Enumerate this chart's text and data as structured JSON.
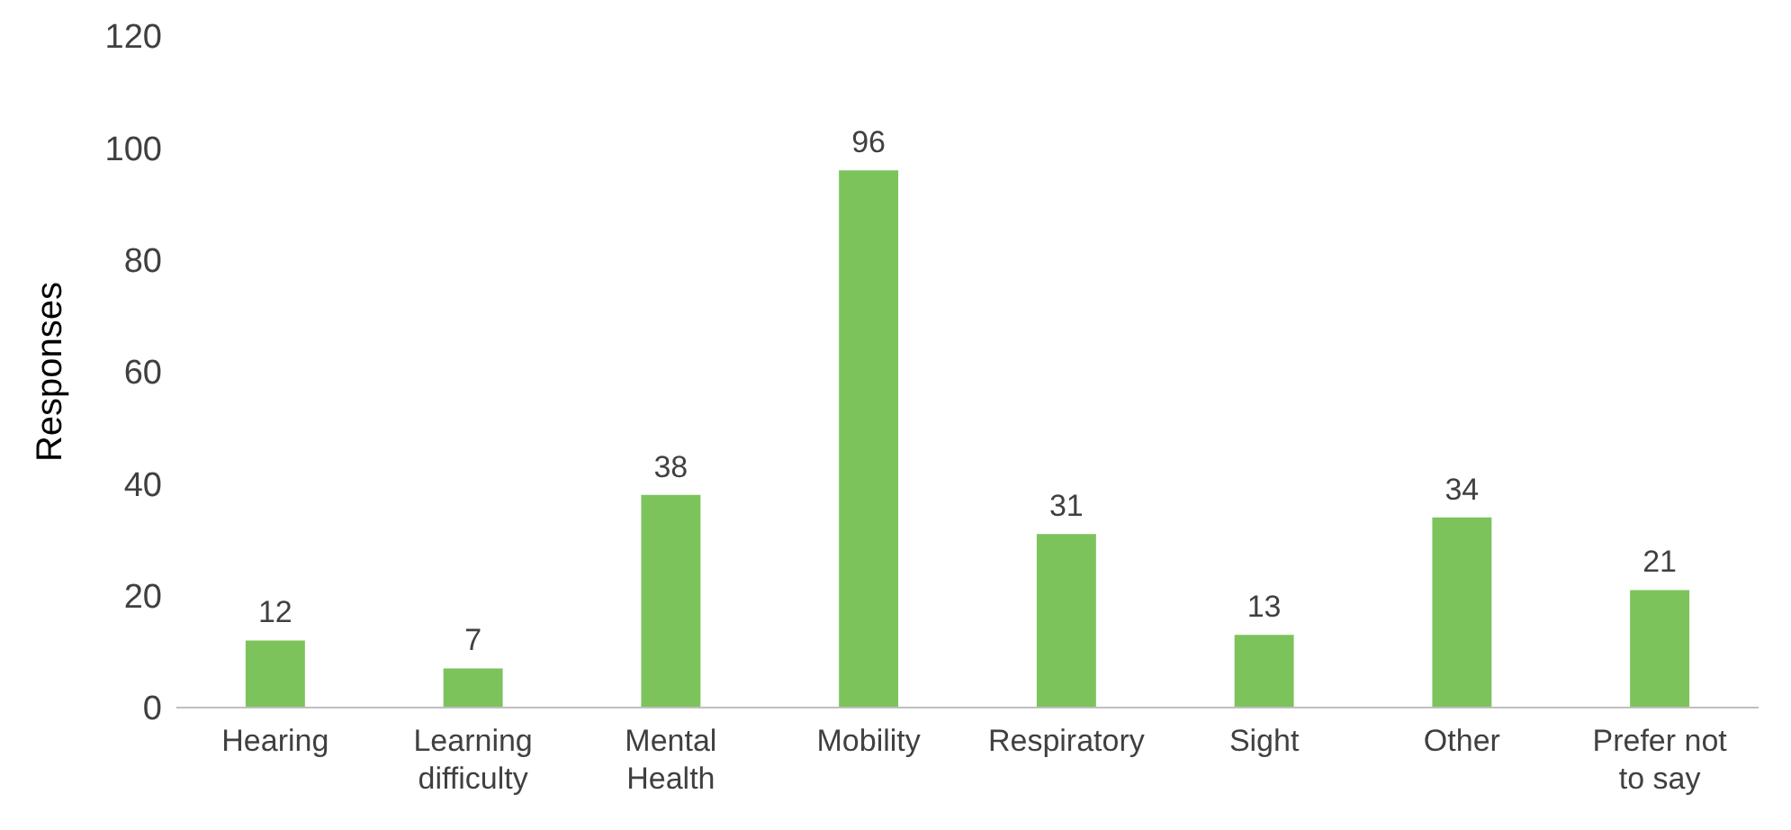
{
  "chart_data": {
    "type": "bar",
    "ylabel": "Responses",
    "categories": [
      "Hearing",
      "Learning difficulty",
      "Mental Health",
      "Mobility",
      "Respiratory",
      "Sight",
      "Other",
      "Prefer not to say"
    ],
    "values": [
      12,
      7,
      38,
      96,
      31,
      13,
      34,
      21
    ],
    "color": "#7dc35b",
    "ylim": [
      0,
      120
    ],
    "yticks": [
      0,
      20,
      40,
      60,
      80,
      100,
      120
    ],
    "grid": false,
    "data_labels": true
  }
}
